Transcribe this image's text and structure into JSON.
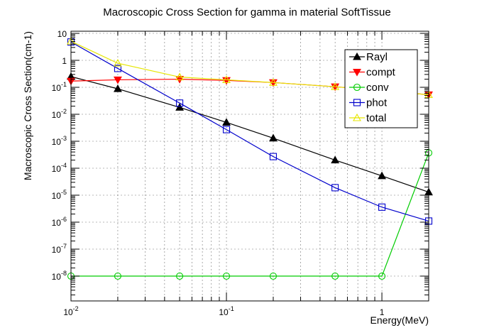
{
  "chart_data": {
    "type": "line",
    "title": "Macroscopic Cross Section for gamma in material SoftTissue",
    "xlabel": "Energy(MeV)",
    "ylabel": "Macroscopic Cross Section(cm-1)",
    "xscale": "log",
    "yscale": "log",
    "xlim": [
      0.01,
      2
    ],
    "ylim": [
      1.2e-09,
      12
    ],
    "grid": true,
    "legend_position": "top-right",
    "x_tick_labels": [
      {
        "value": 0.01,
        "base": "10",
        "exp": "-2"
      },
      {
        "value": 0.1,
        "base": "10",
        "exp": "-1"
      },
      {
        "value": 1,
        "base": "1",
        "exp": ""
      }
    ],
    "y_tick_labels": [
      {
        "value": 1e-08,
        "base": "10",
        "exp": "-8"
      },
      {
        "value": 1e-07,
        "base": "10",
        "exp": "-7"
      },
      {
        "value": 1e-06,
        "base": "10",
        "exp": "-6"
      },
      {
        "value": 1e-05,
        "base": "10",
        "exp": "-5"
      },
      {
        "value": 0.0001,
        "base": "10",
        "exp": "-4"
      },
      {
        "value": 0.001,
        "base": "10",
        "exp": "-3"
      },
      {
        "value": 0.01,
        "base": "10",
        "exp": "-2"
      },
      {
        "value": 0.1,
        "base": "10",
        "exp": "-1"
      },
      {
        "value": 1,
        "base": "1",
        "exp": ""
      },
      {
        "value": 10,
        "base": "10",
        "exp": ""
      }
    ],
    "x": [
      0.01,
      0.02,
      0.05,
      0.1,
      0.2,
      0.5,
      1,
      2
    ],
    "series": [
      {
        "name": "Rayl",
        "color": "#000000",
        "marker": "triangle-up-filled",
        "values": [
          0.25,
          0.088,
          0.018,
          0.005,
          0.0013,
          0.0002,
          5.2e-05,
          1.3e-05
        ]
      },
      {
        "name": "compt",
        "color": "#ff0000",
        "marker": "triangle-down-filled",
        "values": [
          0.17,
          0.19,
          0.2,
          0.18,
          0.15,
          0.105,
          0.076,
          0.053
        ]
      },
      {
        "name": "conv",
        "color": "#00cc00",
        "marker": "circle-open",
        "values": [
          1e-08,
          1e-08,
          1e-08,
          1e-08,
          1e-08,
          1e-08,
          1e-08,
          0.00037
        ]
      },
      {
        "name": "phot",
        "color": "#0000cc",
        "marker": "square-open",
        "values": [
          4.8,
          0.5,
          0.026,
          0.0027,
          0.00027,
          1.9e-05,
          3.6e-06,
          1.1e-06
        ]
      },
      {
        "name": "total",
        "color": "#e6e600",
        "marker": "triangle-up-open",
        "values": [
          5.1,
          0.78,
          0.24,
          0.19,
          0.15,
          0.105,
          0.075,
          0.053
        ]
      }
    ]
  }
}
